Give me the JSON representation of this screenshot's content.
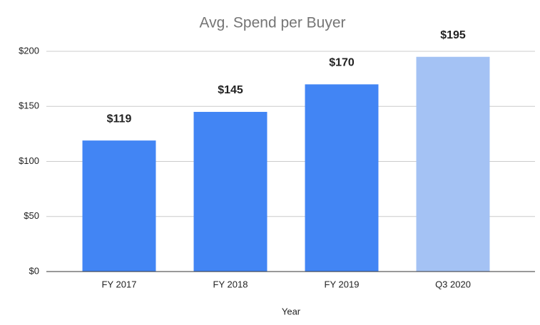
{
  "chart_data": {
    "type": "bar",
    "title": "Avg. Spend per Buyer",
    "x_label": "Year",
    "categories": [
      "FY 2017",
      "FY 2018",
      "FY 2019",
      "Q3 2020"
    ],
    "values": [
      119,
      145,
      170,
      195
    ],
    "value_labels": [
      "$119",
      "$145",
      "$170",
      "$195"
    ],
    "colors": [
      "#4285f4",
      "#4285f4",
      "#4285f4",
      "#a4c2f4"
    ],
    "ylim": [
      0,
      200
    ],
    "yticks": [
      {
        "value": 0,
        "label": "$0"
      },
      {
        "value": 50,
        "label": "$50"
      },
      {
        "value": 100,
        "label": "$100"
      },
      {
        "value": 150,
        "label": "$150"
      },
      {
        "value": 200,
        "label": "$200"
      }
    ],
    "grid": true
  }
}
